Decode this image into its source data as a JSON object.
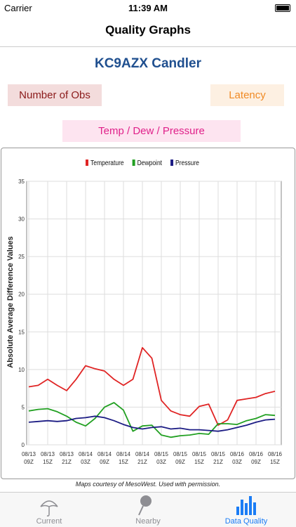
{
  "status_bar": {
    "carrier": "Carrier",
    "time": "11:39 AM"
  },
  "nav": {
    "title": "Quality Graphs"
  },
  "station": "KC9AZX Candler",
  "buttons": [
    "Number of Obs",
    "Latency",
    "Temp / Dew / Pressure"
  ],
  "chart_data": {
    "type": "line",
    "ylabel": "Absolute Average Difference Values",
    "categories": [
      "08/13 09Z",
      null,
      "08/13 15Z",
      null,
      "08/13 21Z",
      null,
      "08/14 03Z",
      null,
      "08/14 09Z",
      null,
      "08/14 15Z",
      null,
      "08/14 21Z",
      null,
      "08/15 03Z",
      null,
      "08/15 09Z",
      null,
      "08/15 15Z",
      null,
      "08/15 21Z",
      null,
      "08/16 03Z",
      null,
      "08/16 09Z",
      null,
      "08/16 15Z"
    ],
    "series": [
      {
        "name": "Temperature",
        "color": "#e02424",
        "values": [
          7.7,
          7.9,
          8.7,
          7.9,
          7.2,
          8.7,
          10.5,
          10.1,
          9.8,
          8.7,
          7.9,
          8.7,
          12.9,
          11.5,
          5.9,
          4.5,
          4.0,
          3.8,
          5.1,
          5.4,
          2.6,
          3.3,
          5.9,
          6.1,
          6.3,
          6.8,
          7.1
        ]
      },
      {
        "name": "Dewpoint",
        "color": "#22a022",
        "values": [
          4.5,
          4.7,
          4.8,
          4.4,
          3.8,
          3.0,
          2.5,
          3.5,
          5.0,
          5.6,
          4.6,
          1.8,
          2.5,
          2.6,
          1.3,
          1.0,
          1.2,
          1.3,
          1.5,
          1.4,
          2.8,
          2.8,
          2.7,
          3.2,
          3.5,
          4.0,
          3.9
        ]
      },
      {
        "name": "Pressure",
        "color": "#1c1c84",
        "values": [
          3.0,
          3.1,
          3.2,
          3.1,
          3.2,
          3.5,
          3.6,
          3.8,
          3.6,
          3.2,
          2.7,
          2.3,
          2.1,
          2.3,
          2.4,
          2.1,
          2.2,
          2.0,
          2.0,
          1.9,
          1.8,
          2.0,
          2.3,
          2.6,
          3.0,
          3.3,
          3.4
        ]
      }
    ],
    "ylim": [
      0,
      35
    ],
    "yticks": [
      0,
      5,
      10,
      15,
      20,
      25,
      30,
      35
    ],
    "grid": true
  },
  "credit": "Maps courtesy of MesoWest. Used with permission.",
  "tabs": [
    "Current",
    "Nearby",
    "Data Quality"
  ]
}
